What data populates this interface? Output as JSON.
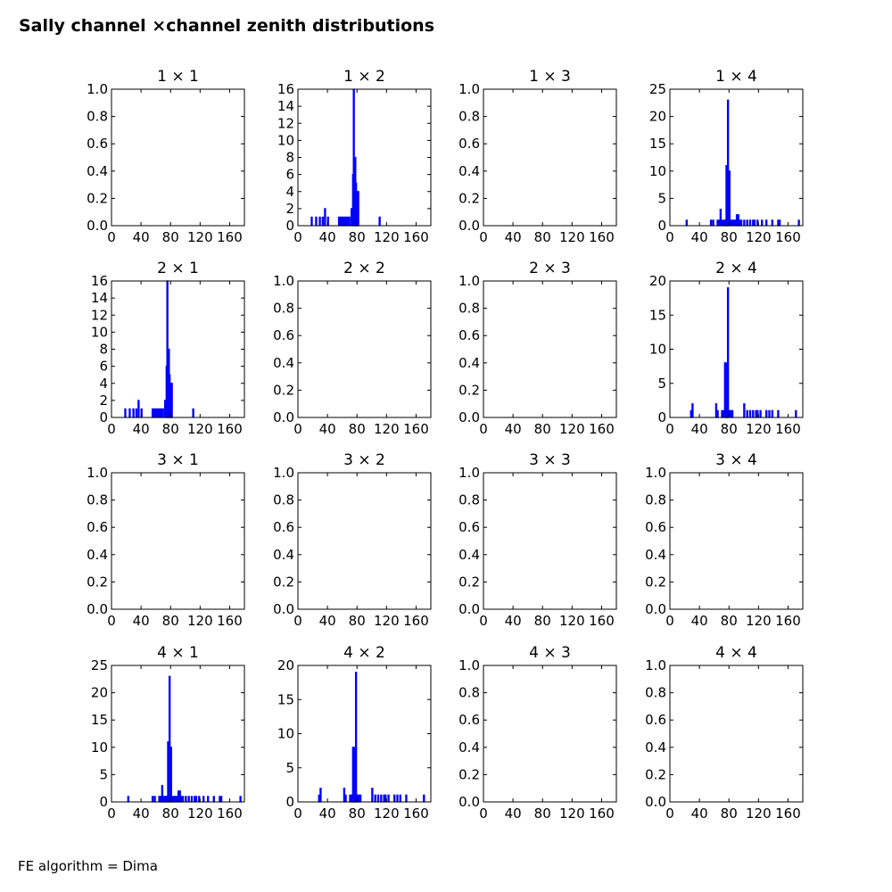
{
  "figure": {
    "title": "Sally channel ×channel zenith distributions",
    "footer": "FE algorithm = Dima"
  },
  "colors": {
    "series": "#0000ff",
    "axes": "#000000",
    "background": "#ffffff"
  },
  "chart_data": [
    {
      "type": "bar",
      "title": "1 × 1",
      "xlim": [
        0,
        180
      ],
      "ylim": [
        0,
        1.0
      ],
      "xticks": [
        "0",
        "40",
        "80",
        "120",
        "160"
      ],
      "yticks": [
        "0.0",
        "0.2",
        "0.4",
        "0.6",
        "0.8",
        "1.0"
      ],
      "x": [],
      "values": []
    },
    {
      "type": "bar",
      "title": "1 × 2",
      "xlim": [
        0,
        180
      ],
      "ylim": [
        0,
        16
      ],
      "xticks": [
        "0",
        "40",
        "80",
        "120",
        "160"
      ],
      "yticks": [
        "0",
        "2",
        "4",
        "6",
        "8",
        "10",
        "12",
        "14",
        "16"
      ],
      "x": [
        18,
        24,
        29,
        33,
        36,
        40,
        55,
        57,
        59,
        61,
        63,
        65,
        67,
        69,
        72,
        74,
        75,
        76,
        77,
        78,
        79,
        80,
        81,
        110
      ],
      "values": [
        1,
        1,
        1,
        1,
        2,
        1,
        1,
        1,
        1,
        1,
        1,
        1,
        1,
        1,
        2,
        6,
        16,
        7,
        8,
        5,
        4,
        1,
        4,
        1
      ]
    },
    {
      "type": "bar",
      "title": "1 × 3",
      "xlim": [
        0,
        180
      ],
      "ylim": [
        0,
        1.0
      ],
      "xticks": [
        "0",
        "40",
        "80",
        "120",
        "160"
      ],
      "yticks": [
        "0.0",
        "0.2",
        "0.4",
        "0.6",
        "0.8",
        "1.0"
      ],
      "x": [],
      "values": []
    },
    {
      "type": "bar",
      "title": "1 × 4",
      "xlim": [
        0,
        180
      ],
      "ylim": [
        0,
        25
      ],
      "xticks": [
        "0",
        "40",
        "80",
        "120",
        "160"
      ],
      "yticks": [
        "0",
        "5",
        "10",
        "15",
        "20",
        "25"
      ],
      "x": [
        22,
        55,
        58,
        64,
        66,
        68,
        70,
        72,
        74,
        75,
        76,
        77,
        78,
        80,
        82,
        84,
        86,
        88,
        90,
        92,
        94,
        96,
        100,
        104,
        108,
        112,
        114,
        118,
        124,
        130,
        138,
        146,
        148,
        174
      ],
      "values": [
        1,
        1,
        1,
        1,
        1,
        3,
        1,
        1,
        1,
        1,
        11,
        11,
        23,
        10,
        1,
        1,
        1,
        1,
        2,
        2,
        1,
        1,
        1,
        1,
        1,
        1,
        1,
        1,
        1,
        1,
        1,
        1,
        1,
        1
      ]
    },
    {
      "type": "bar",
      "title": "2 × 1",
      "xlim": [
        0,
        180
      ],
      "ylim": [
        0,
        16
      ],
      "xticks": [
        "0",
        "40",
        "80",
        "120",
        "160"
      ],
      "yticks": [
        "0",
        "2",
        "4",
        "6",
        "8",
        "10",
        "12",
        "14",
        "16"
      ],
      "x": [
        18,
        24,
        29,
        33,
        36,
        40,
        55,
        57,
        59,
        61,
        63,
        65,
        67,
        69,
        72,
        74,
        75,
        76,
        77,
        78,
        79,
        80,
        81,
        110
      ],
      "values": [
        1,
        1,
        1,
        1,
        2,
        1,
        1,
        1,
        1,
        1,
        1,
        1,
        1,
        1,
        2,
        6,
        16,
        7,
        8,
        5,
        4,
        1,
        4,
        1
      ]
    },
    {
      "type": "bar",
      "title": "2 × 2",
      "xlim": [
        0,
        180
      ],
      "ylim": [
        0,
        1.0
      ],
      "xticks": [
        "0",
        "40",
        "80",
        "120",
        "160"
      ],
      "yticks": [
        "0.0",
        "0.2",
        "0.4",
        "0.6",
        "0.8",
        "1.0"
      ],
      "x": [],
      "values": []
    },
    {
      "type": "bar",
      "title": "2 × 3",
      "xlim": [
        0,
        180
      ],
      "ylim": [
        0,
        1.0
      ],
      "xticks": [
        "0",
        "40",
        "80",
        "120",
        "160"
      ],
      "yticks": [
        "0.0",
        "0.2",
        "0.4",
        "0.6",
        "0.8",
        "1.0"
      ],
      "x": [],
      "values": []
    },
    {
      "type": "bar",
      "title": "2 × 4",
      "xlim": [
        0,
        180
      ],
      "ylim": [
        0,
        20
      ],
      "xticks": [
        "0",
        "40",
        "80",
        "120",
        "160"
      ],
      "yticks": [
        "0",
        "5",
        "10",
        "15",
        "20"
      ],
      "x": [
        28,
        30,
        62,
        64,
        70,
        72,
        74,
        75,
        76,
        77,
        78,
        80,
        82,
        84,
        100,
        104,
        108,
        112,
        116,
        118,
        122,
        130,
        134,
        138,
        146,
        170
      ],
      "values": [
        1,
        2,
        2,
        1,
        1,
        1,
        8,
        5,
        8,
        4,
        19,
        1,
        1,
        1,
        2,
        1,
        1,
        1,
        1,
        1,
        1,
        1,
        1,
        1,
        1,
        1
      ]
    },
    {
      "type": "bar",
      "title": "3 × 1",
      "xlim": [
        0,
        180
      ],
      "ylim": [
        0,
        1.0
      ],
      "xticks": [
        "0",
        "40",
        "80",
        "120",
        "160"
      ],
      "yticks": [
        "0.0",
        "0.2",
        "0.4",
        "0.6",
        "0.8",
        "1.0"
      ],
      "x": [],
      "values": []
    },
    {
      "type": "bar",
      "title": "3 × 2",
      "xlim": [
        0,
        180
      ],
      "ylim": [
        0,
        1.0
      ],
      "xticks": [
        "0",
        "40",
        "80",
        "120",
        "160"
      ],
      "yticks": [
        "0.0",
        "0.2",
        "0.4",
        "0.6",
        "0.8",
        "1.0"
      ],
      "x": [],
      "values": []
    },
    {
      "type": "bar",
      "title": "3 × 3",
      "xlim": [
        0,
        180
      ],
      "ylim": [
        0,
        1.0
      ],
      "xticks": [
        "0",
        "40",
        "80",
        "120",
        "160"
      ],
      "yticks": [
        "0.0",
        "0.2",
        "0.4",
        "0.6",
        "0.8",
        "1.0"
      ],
      "x": [],
      "values": []
    },
    {
      "type": "bar",
      "title": "3 × 4",
      "xlim": [
        0,
        180
      ],
      "ylim": [
        0,
        1.0
      ],
      "xticks": [
        "0",
        "40",
        "80",
        "120",
        "160"
      ],
      "yticks": [
        "0.0",
        "0.2",
        "0.4",
        "0.6",
        "0.8",
        "1.0"
      ],
      "x": [],
      "values": []
    },
    {
      "type": "bar",
      "title": "4 × 1",
      "xlim": [
        0,
        180
      ],
      "ylim": [
        0,
        25
      ],
      "xticks": [
        "0",
        "40",
        "80",
        "120",
        "160"
      ],
      "yticks": [
        "0",
        "5",
        "10",
        "15",
        "20",
        "25"
      ],
      "x": [
        22,
        55,
        58,
        64,
        66,
        68,
        70,
        72,
        74,
        75,
        76,
        77,
        78,
        80,
        82,
        84,
        86,
        88,
        90,
        92,
        94,
        96,
        100,
        104,
        108,
        112,
        114,
        118,
        124,
        130,
        138,
        146,
        148,
        174
      ],
      "values": [
        1,
        1,
        1,
        1,
        1,
        3,
        1,
        1,
        1,
        1,
        11,
        11,
        23,
        10,
        1,
        1,
        1,
        1,
        2,
        2,
        1,
        1,
        1,
        1,
        1,
        1,
        1,
        1,
        1,
        1,
        1,
        1,
        1,
        1
      ]
    },
    {
      "type": "bar",
      "title": "4 × 2",
      "xlim": [
        0,
        180
      ],
      "ylim": [
        0,
        20
      ],
      "xticks": [
        "0",
        "40",
        "80",
        "120",
        "160"
      ],
      "yticks": [
        "0",
        "5",
        "10",
        "15",
        "20"
      ],
      "x": [
        28,
        30,
        62,
        64,
        70,
        72,
        74,
        75,
        76,
        77,
        78,
        80,
        82,
        84,
        100,
        104,
        108,
        112,
        116,
        118,
        122,
        130,
        134,
        138,
        146,
        170
      ],
      "values": [
        1,
        2,
        2,
        1,
        1,
        1,
        8,
        5,
        8,
        4,
        19,
        1,
        1,
        1,
        2,
        1,
        1,
        1,
        1,
        1,
        1,
        1,
        1,
        1,
        1,
        1
      ]
    },
    {
      "type": "bar",
      "title": "4 × 3",
      "xlim": [
        0,
        180
      ],
      "ylim": [
        0,
        1.0
      ],
      "xticks": [
        "0",
        "40",
        "80",
        "120",
        "160"
      ],
      "yticks": [
        "0.0",
        "0.2",
        "0.4",
        "0.6",
        "0.8",
        "1.0"
      ],
      "x": [],
      "values": []
    },
    {
      "type": "bar",
      "title": "4 × 4",
      "xlim": [
        0,
        180
      ],
      "ylim": [
        0,
        1.0
      ],
      "xticks": [
        "0",
        "40",
        "80",
        "120",
        "160"
      ],
      "yticks": [
        "0.0",
        "0.2",
        "0.4",
        "0.6",
        "0.8",
        "1.0"
      ],
      "x": [],
      "values": []
    }
  ]
}
